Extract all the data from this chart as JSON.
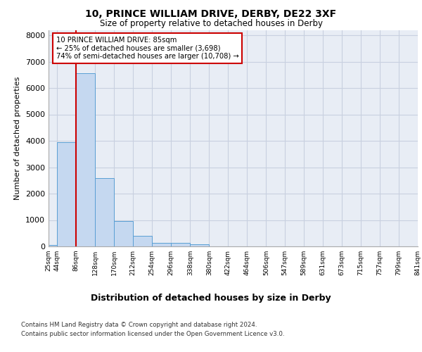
{
  "title1": "10, PRINCE WILLIAM DRIVE, DERBY, DE22 3XF",
  "title2": "Size of property relative to detached houses in Derby",
  "xlabel": "Distribution of detached houses by size in Derby",
  "ylabel": "Number of detached properties",
  "annotation_line1": "10 PRINCE WILLIAM DRIVE: 85sqm",
  "annotation_line2": "← 25% of detached houses are smaller (3,698)",
  "annotation_line3": "74% of semi-detached houses are larger (10,708) →",
  "bin_edges": [
    25,
    44,
    86,
    128,
    170,
    212,
    254,
    296,
    338,
    380,
    422,
    464,
    506,
    547,
    589,
    631,
    673,
    715,
    757,
    799,
    841
  ],
  "bar_heights": [
    50,
    3950,
    6550,
    2600,
    950,
    400,
    130,
    130,
    80,
    0,
    0,
    0,
    0,
    0,
    0,
    0,
    0,
    0,
    0,
    0
  ],
  "bar_color": "#c5d8f0",
  "bar_edge_color": "#5a9fd4",
  "grid_color": "#c8d0e0",
  "vline_color": "#cc0000",
  "vline_x": 86,
  "annotation_box_color": "#cc0000",
  "background_color": "#e8edf5",
  "ylim": [
    0,
    8200
  ],
  "yticks": [
    0,
    1000,
    2000,
    3000,
    4000,
    5000,
    6000,
    7000,
    8000
  ],
  "footer1": "Contains HM Land Registry data © Crown copyright and database right 2024.",
  "footer2": "Contains public sector information licensed under the Open Government Licence v3.0."
}
